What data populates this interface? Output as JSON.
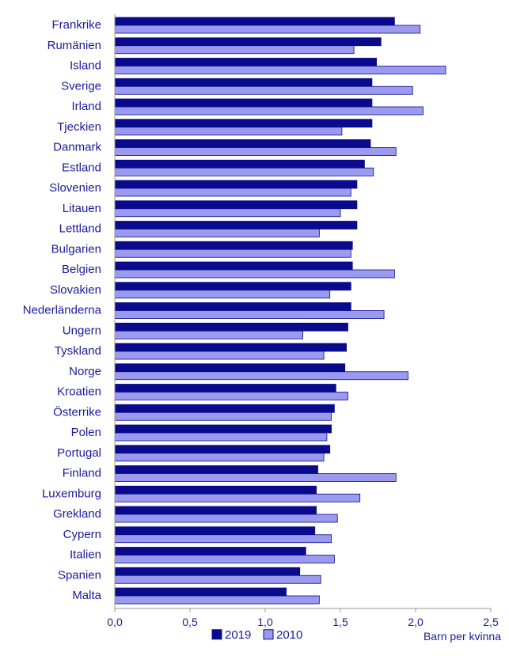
{
  "chart_data": {
    "type": "bar",
    "orientation": "horizontal",
    "categories": [
      "Frankrike",
      "Rumänien",
      "Island",
      "Sverige",
      "Irland",
      "Tjeckien",
      "Danmark",
      "Estland",
      "Slovenien",
      "Litauen",
      "Lettland",
      "Bulgarien",
      "Belgien",
      "Slovakien",
      "Nederländerna",
      "Ungern",
      "Tyskland",
      "Norge",
      "Kroatien",
      "Österrike",
      "Polen",
      "Portugal",
      "Finland",
      "Luxemburg",
      "Grekland",
      "Cypern",
      "Italien",
      "Spanien",
      "Malta"
    ],
    "series": [
      {
        "name": "2019",
        "color": "#0a0a8c",
        "values": [
          1.86,
          1.77,
          1.74,
          1.71,
          1.71,
          1.71,
          1.7,
          1.66,
          1.61,
          1.61,
          1.61,
          1.58,
          1.58,
          1.57,
          1.57,
          1.55,
          1.54,
          1.53,
          1.47,
          1.46,
          1.44,
          1.43,
          1.35,
          1.34,
          1.34,
          1.33,
          1.27,
          1.23,
          1.14
        ]
      },
      {
        "name": "2010",
        "color": "#9a9aee",
        "values": [
          2.03,
          1.59,
          2.2,
          1.98,
          2.05,
          1.51,
          1.87,
          1.72,
          1.57,
          1.5,
          1.36,
          1.57,
          1.86,
          1.43,
          1.79,
          1.25,
          1.39,
          1.95,
          1.55,
          1.44,
          1.41,
          1.39,
          1.87,
          1.63,
          1.48,
          1.44,
          1.46,
          1.37,
          1.36
        ]
      }
    ],
    "xlim": [
      0,
      2.5
    ],
    "xticks": [
      "0,0",
      "0,5",
      "1,0",
      "1,5",
      "2,0",
      "2,5"
    ],
    "xtick_values": [
      0,
      0.5,
      1.0,
      1.5,
      2.0,
      2.5
    ],
    "xlabel": "Barn per kvinna",
    "ylabel": "",
    "title": "",
    "grid": false,
    "legend_position": "bottom"
  }
}
